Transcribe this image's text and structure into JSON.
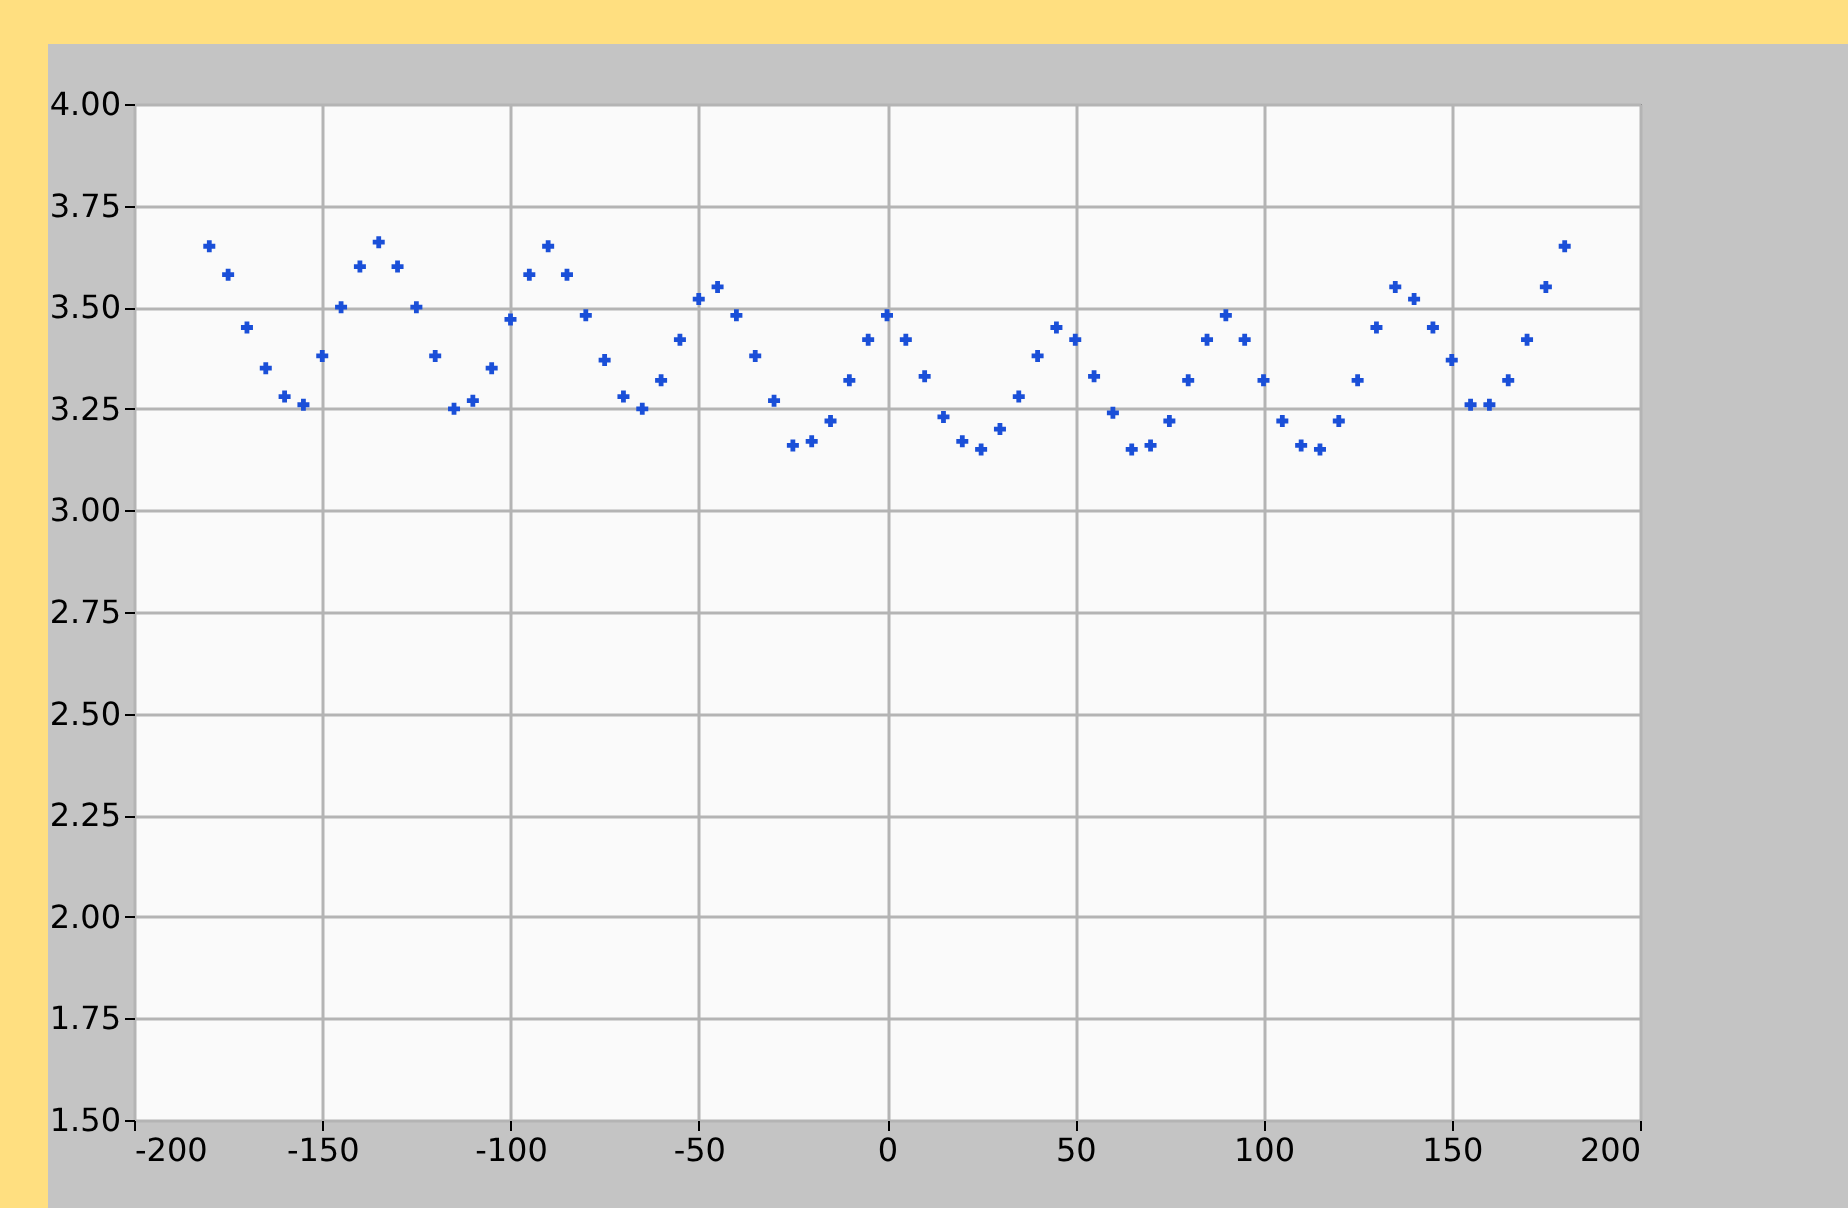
{
  "chart_data": {
    "type": "scatter",
    "marker": "cross",
    "grid": true,
    "x": [
      -180,
      -175,
      -170,
      -165,
      -160,
      -155,
      -150,
      -145,
      -140,
      -135,
      -130,
      -125,
      -120,
      -115,
      -110,
      -105,
      -100,
      -95,
      -90,
      -85,
      -80,
      -75,
      -70,
      -65,
      -60,
      -55,
      -50,
      -45,
      -40,
      -35,
      -30,
      -25,
      -20,
      -15,
      -10,
      -5,
      0,
      5,
      10,
      15,
      20,
      25,
      30,
      35,
      40,
      45,
      50,
      55,
      60,
      65,
      70,
      75,
      80,
      85,
      90,
      95,
      100,
      105,
      110,
      115,
      120,
      125,
      130,
      135,
      140,
      145,
      150,
      155,
      160,
      165,
      170,
      175,
      180
    ],
    "series": [
      {
        "color": "#1a4fd8",
        "values": [
          3.65,
          3.58,
          3.45,
          3.35,
          3.28,
          3.26,
          3.38,
          3.5,
          3.6,
          3.66,
          3.6,
          3.5,
          3.38,
          3.25,
          3.27,
          3.35,
          3.47,
          3.58,
          3.65,
          3.58,
          3.48,
          3.37,
          3.28,
          3.25,
          3.32,
          3.42,
          3.52,
          3.55,
          3.48,
          3.38,
          3.27,
          3.16,
          3.17,
          3.22,
          3.32,
          3.42,
          3.48,
          3.42,
          3.33,
          3.23,
          3.17,
          3.15,
          3.2,
          3.28,
          3.38,
          3.45,
          3.42,
          3.33,
          3.24,
          3.15,
          3.16,
          3.22,
          3.32,
          3.42,
          3.48,
          3.42,
          3.32,
          3.22,
          3.16,
          3.15,
          3.22,
          3.32,
          3.45,
          3.55,
          3.52,
          3.45,
          3.37,
          3.26,
          3.26,
          3.32,
          3.42,
          3.55,
          3.65
        ]
      }
    ],
    "xlim": [
      -200,
      200
    ],
    "xticks": [
      -200,
      -150,
      -100,
      -50,
      0,
      50,
      100,
      150,
      200
    ],
    "ylim": [
      1.5,
      4
    ],
    "yticks": [
      {
        "value": 1.5,
        "label": "1.50"
      },
      {
        "value": 1.75,
        "label": "1.75"
      },
      {
        "value": 2,
        "label": "2.00"
      },
      {
        "value": 2.25,
        "label": "2.25"
      },
      {
        "value": 2.5,
        "label": "2.50"
      },
      {
        "value": 2.75,
        "label": "2.75"
      },
      {
        "value": 3,
        "label": "3.00"
      },
      {
        "value": 3.25,
        "label": "3.25"
      },
      {
        "value": 3.5,
        "label": "3.50"
      },
      {
        "value": 3.75,
        "label": "3.75"
      },
      {
        "value": 4,
        "label": "4.00"
      }
    ]
  }
}
